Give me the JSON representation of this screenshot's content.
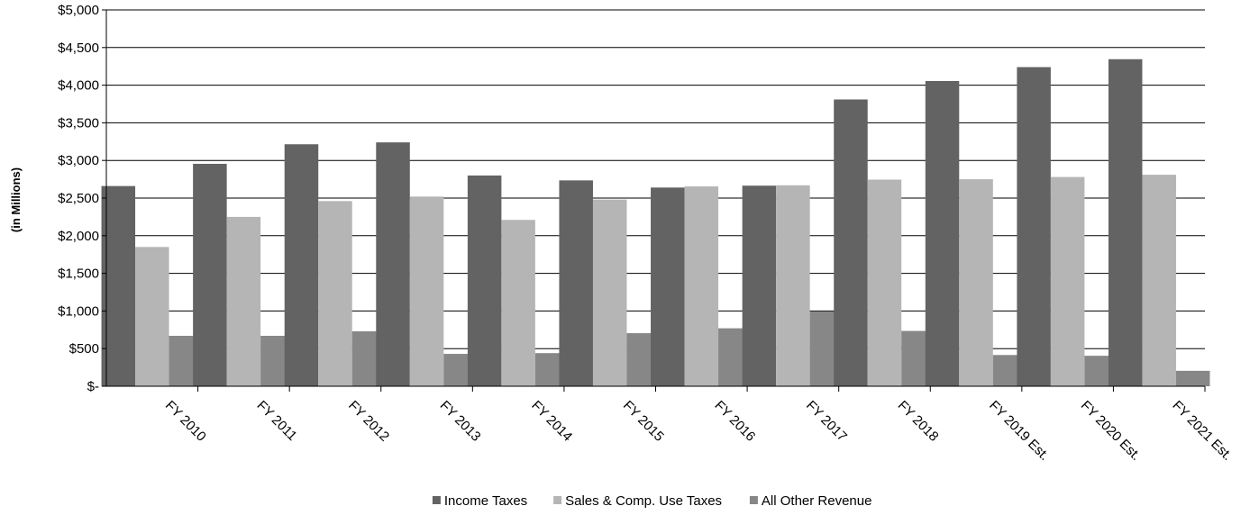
{
  "chart_data": {
    "type": "bar",
    "ylabel": "(in Millions)",
    "ylim": [
      0,
      5000
    ],
    "yticks": [
      0,
      500,
      1000,
      1500,
      2000,
      2500,
      3000,
      3500,
      4000,
      4500,
      5000
    ],
    "ytick_labels": [
      "$-",
      "$500",
      "$1,000",
      "$1,500",
      "$2,000",
      "$2,500",
      "$3,000",
      "$3,500",
      "$4,000",
      "$4,500",
      "$5,000"
    ],
    "grid": true,
    "legend_position": "bottom",
    "categories": [
      "FY 2010",
      "FY 2011",
      "FY 2012",
      "FY 2013",
      "FY 2014",
      "FY 2015",
      "FY 2016",
      "FY 2017",
      "FY 2018",
      "FY 2019 Est.",
      "FY 2020 Est.",
      "FY 2021 Est."
    ],
    "series": [
      {
        "name": "Income Taxes",
        "color": "#636363",
        "values": [
          2660,
          2955,
          3215,
          3240,
          2800,
          2735,
          2640,
          2665,
          3810,
          4055,
          4240,
          4345
        ]
      },
      {
        "name": "Sales & Comp. Use Taxes",
        "color": "#b5b5b5",
        "values": [
          1850,
          2250,
          2460,
          2520,
          2210,
          2480,
          2655,
          2670,
          2745,
          2750,
          2780,
          2810
        ]
      },
      {
        "name": "All Other Revenue",
        "color": "#878787",
        "values": [
          670,
          670,
          730,
          430,
          440,
          705,
          770,
          995,
          735,
          415,
          405,
          205
        ]
      }
    ]
  }
}
